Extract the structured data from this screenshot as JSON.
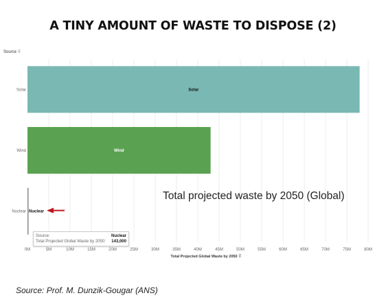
{
  "title": "A TINY AMOUNT OF WASTE TO DISPOSE (2)",
  "y_header": "Source",
  "x_axis_title": "Total Projected Global Waste by 2050",
  "note": "Total projected waste by 2050 (Global)",
  "tooltip": {
    "source_label": "Source:",
    "source_value": "Nuclear",
    "waste_label": "Total Projected Global Waste by 2050:",
    "waste_value": "143,000"
  },
  "footer_source": "Source: Prof. M. Dunzik-Gougar (ANS)",
  "colors": {
    "solar": "#7ab8b3",
    "wind": "#5aa251",
    "nuclear": "#888888",
    "arrow": "#c0151b",
    "grid": "#ececec"
  },
  "chart_data": {
    "type": "bar",
    "orientation": "horizontal",
    "categories": [
      "Solar",
      "Wind",
      "Nuclear"
    ],
    "values": [
      78000000,
      43000000,
      143000
    ],
    "bar_labels": [
      "Solar",
      "Wind",
      "Nuclear"
    ],
    "xlabel": "Total Projected Global Waste by 2050",
    "ylabel": "Source",
    "xlim": [
      0,
      80000000
    ],
    "x_ticks": [
      0,
      5000000,
      10000000,
      15000000,
      20000000,
      25000000,
      30000000,
      35000000,
      40000000,
      45000000,
      50000000,
      55000000,
      60000000,
      65000000,
      70000000,
      75000000,
      80000000
    ],
    "x_tick_labels": [
      "0M",
      "5M",
      "10M",
      "15M",
      "20M",
      "25M",
      "30M",
      "35M",
      "40M",
      "45M",
      "50M",
      "55M",
      "60M",
      "65M",
      "70M",
      "75M",
      "80M"
    ],
    "grid": true
  }
}
